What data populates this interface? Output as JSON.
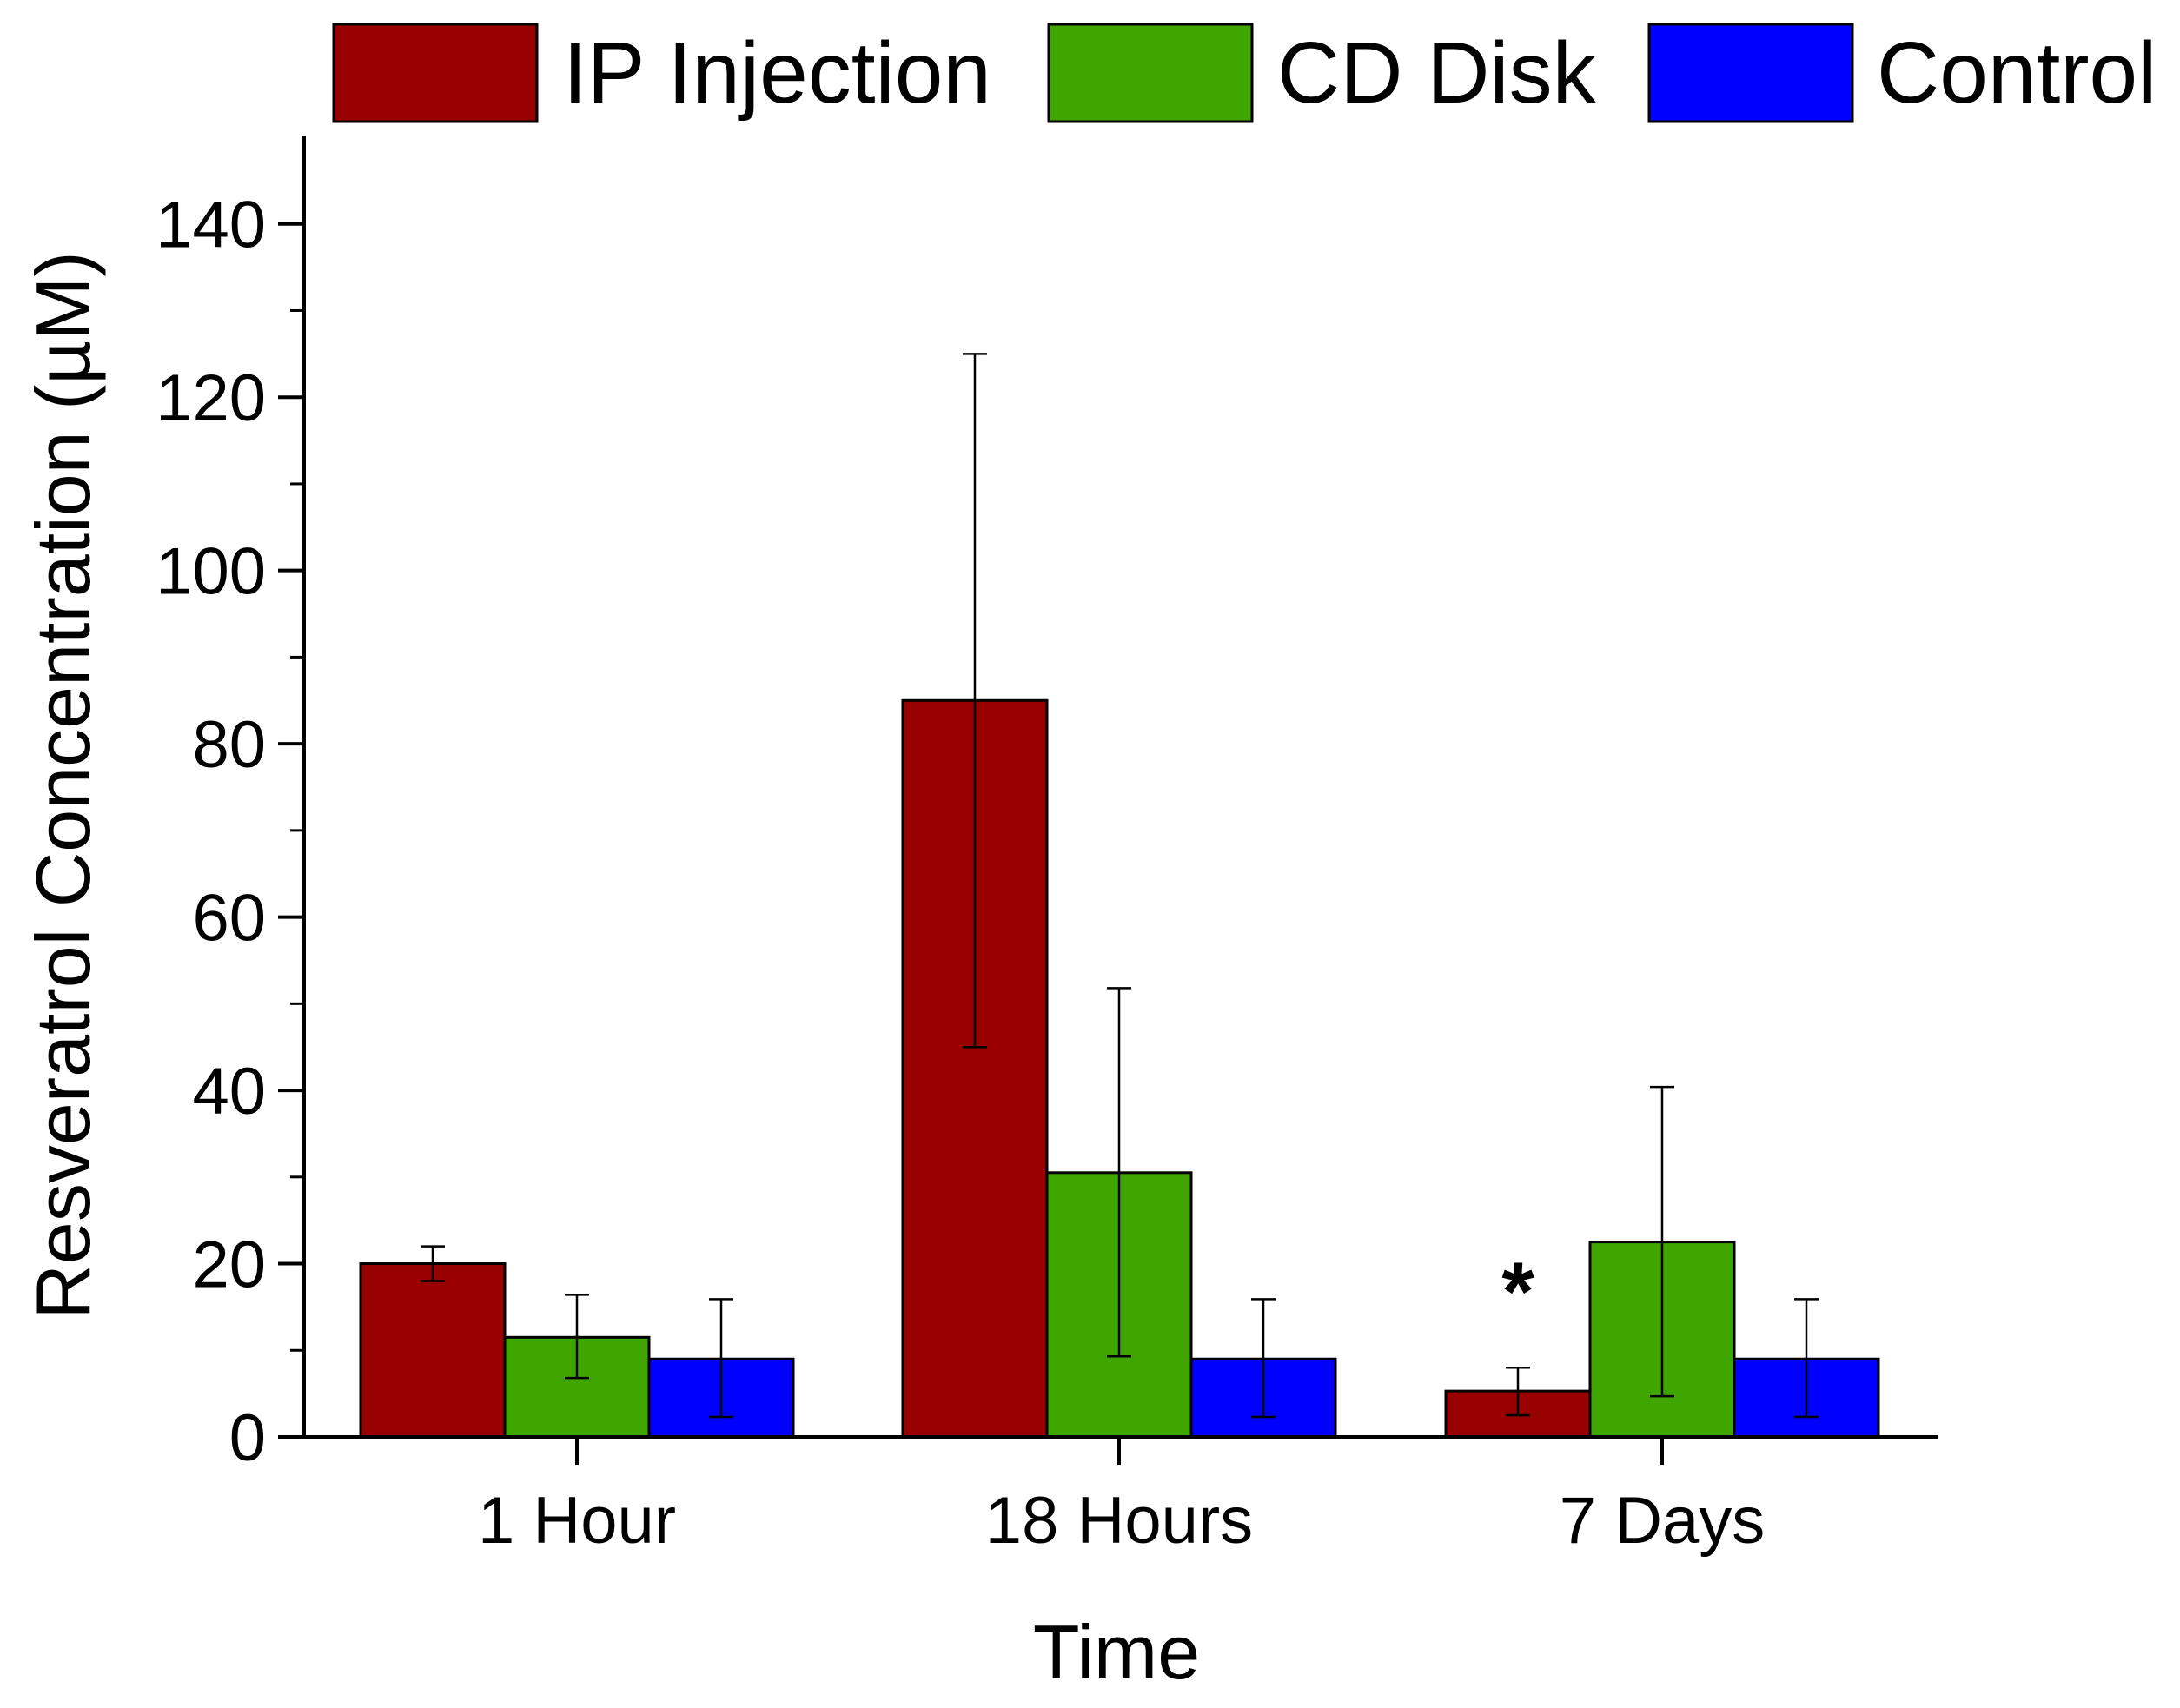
{
  "chart_data": {
    "type": "bar",
    "xlabel": "Time",
    "ylabel": "Resveratrol Concentration (µM)",
    "categories": [
      "1 Hour",
      "18 Hours",
      "7 Days"
    ],
    "ylim": [
      0,
      150
    ],
    "yticks": [
      0,
      20,
      40,
      60,
      80,
      100,
      120,
      140
    ],
    "legend_position": "top",
    "grid": false,
    "series": [
      {
        "name": "IP Injection",
        "color": "#990000",
        "values": [
          20,
          85,
          5.3
        ],
        "error_low": [
          18,
          45,
          2.5
        ],
        "error_high": [
          22,
          125,
          8
        ]
      },
      {
        "name": "CD Disk",
        "color": "#3fa600",
        "values": [
          11.5,
          30.5,
          22.5
        ],
        "error_low": [
          6.8,
          9.3,
          4.7
        ],
        "error_high": [
          16.4,
          51.8,
          40.4
        ]
      },
      {
        "name": "Control",
        "color": "#0000ff",
        "values": [
          9,
          9,
          9
        ],
        "error_low": [
          2.3,
          2.3,
          2.3
        ],
        "error_high": [
          15.9,
          15.9,
          15.9
        ]
      }
    ],
    "annotations": [
      {
        "text": "*",
        "category": "7 Days",
        "series": "IP Injection",
        "value": 16.5
      }
    ]
  }
}
